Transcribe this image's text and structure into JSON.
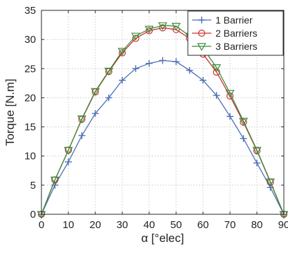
{
  "chart_data": {
    "type": "line",
    "xlabel": "α [°elec]",
    "ylabel": "Torque [N.m]",
    "xlim": [
      0,
      90
    ],
    "ylim": [
      0,
      35
    ],
    "xticks": [
      0,
      10,
      20,
      30,
      40,
      50,
      60,
      70,
      80,
      90
    ],
    "yticks": [
      0,
      5,
      10,
      15,
      20,
      25,
      30,
      35
    ],
    "grid": true,
    "legend_position": "top-right",
    "x": [
      0,
      5,
      10,
      15,
      20,
      25,
      30,
      35,
      40,
      45,
      50,
      55,
      60,
      65,
      70,
      75,
      80,
      85,
      90
    ],
    "series": [
      {
        "name": "1 Barrier",
        "marker": "plus",
        "color": "#4a6fb5",
        "values": [
          0,
          5.0,
          9.0,
          13.5,
          17.3,
          20.0,
          23.0,
          25.0,
          25.9,
          26.4,
          26.2,
          24.7,
          23.0,
          20.4,
          16.8,
          13.0,
          8.8,
          4.6,
          0
        ]
      },
      {
        "name": "2 Barriers",
        "marker": "circle",
        "color": "#cc2f2f",
        "values": [
          0,
          5.9,
          11.0,
          16.3,
          21.0,
          24.5,
          27.7,
          30.2,
          31.5,
          32.0,
          31.7,
          30.2,
          27.5,
          24.4,
          20.3,
          15.8,
          10.9,
          5.5,
          0
        ]
      },
      {
        "name": "3 Barriers",
        "marker": "triangle-down",
        "color": "#3a8a3a",
        "values": [
          0,
          5.9,
          11.0,
          16.4,
          21.1,
          24.6,
          28.0,
          30.6,
          31.8,
          32.4,
          32.3,
          30.6,
          28.5,
          25.2,
          20.8,
          16.0,
          11.0,
          5.6,
          0
        ]
      }
    ]
  }
}
